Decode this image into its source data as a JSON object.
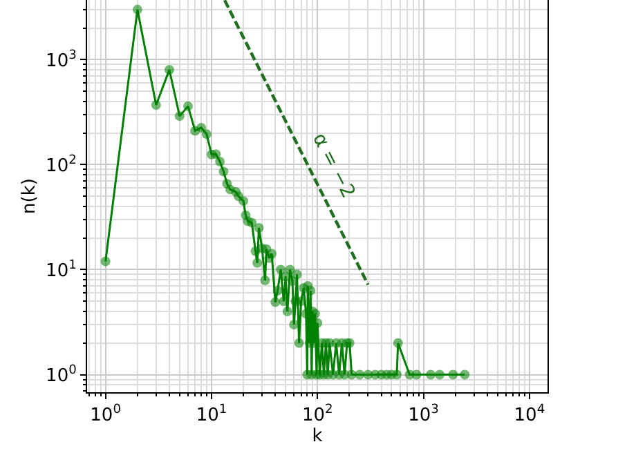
{
  "chart_data": {
    "type": "line",
    "xlabel": "k",
    "ylabel": "n(k)",
    "log": "xy",
    "grid": true,
    "xlim": [
      0.67,
      14800
    ],
    "ylim": [
      0.68,
      3700
    ],
    "xticks": [
      {
        "value": 1,
        "label": "10$^{0}$"
      },
      {
        "value": 10,
        "label": "10$^{1}$"
      },
      {
        "value": 100,
        "label": "10$^{2}$"
      },
      {
        "value": 1000,
        "label": "10$^{3}$"
      },
      {
        "value": 10000,
        "label": "10$^{4}$"
      }
    ],
    "yticks": [
      {
        "value": 1,
        "label": "10$^{0}$"
      },
      {
        "value": 10,
        "label": "10$^{1}$"
      },
      {
        "value": 100,
        "label": "10$^{2}$"
      },
      {
        "value": 1000,
        "label": "10$^{3}$"
      }
    ],
    "annotations": [
      "α = −2"
    ],
    "series": [
      {
        "marker": "circle",
        "line_style": "solid",
        "color": "#008000",
        "x": [
          1,
          2,
          3,
          4,
          5,
          6,
          7,
          8,
          9,
          10,
          11,
          12,
          13,
          14,
          15,
          17,
          18,
          20,
          21,
          22,
          24,
          26,
          27,
          28,
          30,
          32,
          33,
          35,
          37,
          40,
          42,
          45,
          48,
          50,
          52,
          55,
          58,
          60,
          62,
          64,
          67,
          70,
          74,
          78,
          80,
          81,
          84,
          86,
          88,
          90,
          93,
          95,
          98,
          100,
          105,
          110,
          115,
          120,
          125,
          130,
          140,
          150,
          160,
          170,
          180,
          190,
          201,
          210,
          250,
          300,
          350,
          400,
          450,
          500,
          560,
          575,
          740,
          860,
          1170,
          1420,
          1900,
          2450
        ],
        "values": [
          12,
          3000,
          370,
          800,
          290,
          360,
          210,
          225,
          195,
          125,
          126,
          107,
          86,
          66,
          58,
          55,
          50,
          45,
          33,
          29,
          28,
          15,
          11.6,
          25,
          16,
          7.9,
          15.7,
          12.9,
          14.2,
          4.9,
          6.3,
          10,
          5,
          8.6,
          4,
          10,
          7.8,
          3,
          5,
          9,
          2,
          5,
          6.7,
          3.8,
          1,
          7,
          2,
          6.3,
          1,
          4,
          2,
          3.8,
          1,
          3.1,
          1,
          2,
          1,
          2,
          1,
          2,
          1,
          2,
          1,
          2,
          1,
          2,
          2,
          1,
          1,
          1,
          1,
          1,
          1,
          1,
          1,
          2,
          1,
          1,
          1,
          1,
          1,
          1
        ]
      },
      {
        "marker": "none",
        "line_style": "dashed",
        "color": "#1f6f1f",
        "x": [
          13.3,
          300
        ],
        "values": [
          3680,
          7.2
        ]
      }
    ]
  }
}
